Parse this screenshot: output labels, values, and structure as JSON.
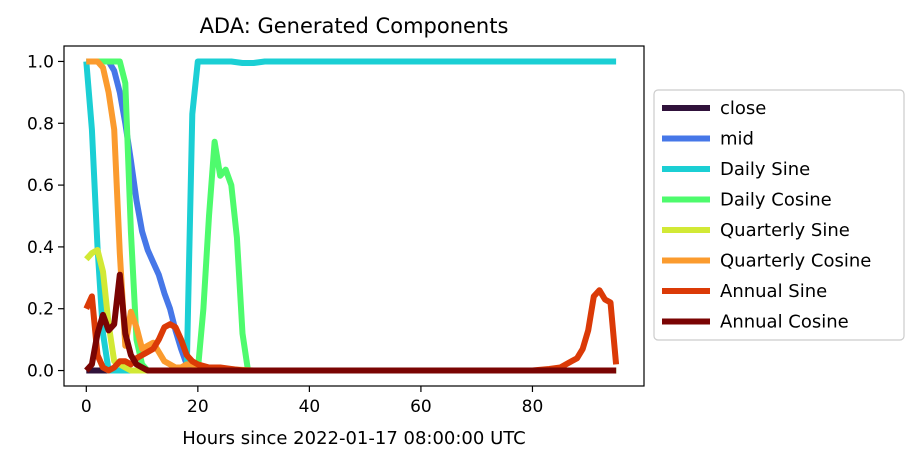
{
  "chart_data": {
    "type": "line",
    "title": "ADA: Generated Components",
    "xlabel": "Hours since 2022-01-17 08:00:00 UTC",
    "ylabel": "",
    "xlim": [
      -4,
      100
    ],
    "ylim": [
      -0.05,
      1.05
    ],
    "xticks": [
      0,
      20,
      40,
      60,
      80
    ],
    "xtick_labels": [
      "0",
      "20",
      "40",
      "60",
      "80"
    ],
    "yticks": [
      0.0,
      0.2,
      0.4,
      0.6,
      0.8,
      1.0
    ],
    "ytick_labels": [
      "0.0",
      "0.2",
      "0.4",
      "0.6",
      "0.8",
      "1.0"
    ],
    "grid": false,
    "legend_position": "outside-right",
    "series": [
      {
        "name": "close",
        "color": "#30123b",
        "x": [
          0,
          95
        ],
        "y": [
          0.0,
          0.0
        ]
      },
      {
        "name": "mid",
        "color": "#4677e8",
        "x": [
          0,
          1,
          2,
          3,
          4,
          5,
          6,
          7,
          8,
          9,
          10,
          11,
          12,
          13,
          14,
          15,
          16,
          17,
          18,
          19,
          20,
          95
        ],
        "y": [
          1.0,
          1.0,
          1.0,
          1.0,
          1.0,
          0.97,
          0.9,
          0.8,
          0.68,
          0.55,
          0.45,
          0.39,
          0.35,
          0.31,
          0.25,
          0.2,
          0.13,
          0.07,
          0.02,
          0.0,
          0.0,
          0.0
        ]
      },
      {
        "name": "Daily Sine",
        "color": "#1bcfd4",
        "x": [
          0,
          1,
          2,
          3,
          4,
          5,
          6,
          7,
          8,
          9,
          10,
          11,
          12,
          13,
          14,
          15,
          16,
          17,
          18,
          19,
          20,
          22,
          24,
          26,
          28,
          30,
          32,
          35,
          40,
          50,
          60,
          70,
          80,
          90,
          95
        ],
        "y": [
          1.0,
          0.78,
          0.4,
          0.12,
          0.0,
          0.0,
          0.0,
          0.0,
          0.0,
          0.0,
          0.0,
          0.0,
          0.0,
          0.0,
          0.0,
          0.0,
          0.0,
          0.0,
          0.0,
          0.83,
          1.0,
          1.0,
          1.0,
          1.0,
          0.995,
          0.995,
          1.0,
          1.0,
          1.0,
          1.0,
          1.0,
          1.0,
          1.0,
          1.0,
          1.0
        ]
      },
      {
        "name": "Daily Cosine",
        "color": "#4efb6d",
        "x": [
          0,
          1,
          2,
          3,
          4,
          5,
          6,
          7,
          8,
          9,
          10,
          11,
          12,
          14,
          16,
          18,
          20,
          21,
          22,
          23,
          24,
          25,
          26,
          27,
          28,
          29,
          30,
          40,
          50,
          60,
          70,
          80,
          90,
          95
        ],
        "y": [
          1.0,
          1.0,
          1.0,
          1.0,
          1.0,
          1.0,
          1.0,
          0.93,
          0.45,
          0.1,
          0.02,
          0.0,
          0.0,
          0.0,
          0.0,
          0.0,
          0.0,
          0.2,
          0.5,
          0.74,
          0.63,
          0.65,
          0.6,
          0.43,
          0.12,
          0.0,
          0.0,
          0.0,
          0.0,
          0.0,
          0.0,
          0.0,
          0.0,
          0.0
        ]
      },
      {
        "name": "Quarterly Sine",
        "color": "#d2e935",
        "x": [
          0,
          1,
          2,
          3,
          4,
          5,
          6,
          7,
          8,
          9,
          10,
          12,
          15,
          20,
          30,
          40,
          50,
          60,
          70,
          80,
          90,
          95
        ],
        "y": [
          0.36,
          0.38,
          0.39,
          0.32,
          0.15,
          0.03,
          0.02,
          0.01,
          0.0,
          0.0,
          0.0,
          0.0,
          0.0,
          0.0,
          0.0,
          0.0,
          0.0,
          0.0,
          0.0,
          0.0,
          0.0,
          0.0
        ]
      },
      {
        "name": "Quarterly Cosine",
        "color": "#fb9b2e",
        "x": [
          0,
          1,
          2,
          3,
          4,
          5,
          6,
          7,
          8,
          9,
          10,
          11,
          12,
          13,
          14,
          15,
          16,
          17,
          18,
          19,
          20,
          30,
          40,
          50,
          60,
          70,
          80,
          90,
          95
        ],
        "y": [
          1.0,
          1.0,
          1.0,
          0.98,
          0.9,
          0.78,
          0.38,
          0.08,
          0.19,
          0.14,
          0.07,
          0.08,
          0.09,
          0.06,
          0.03,
          0.02,
          0.01,
          0.01,
          0.02,
          0.02,
          0.01,
          0.0,
          0.0,
          0.0,
          0.0,
          0.0,
          0.0,
          0.0,
          0.0
        ]
      },
      {
        "name": "Annual Sine",
        "color": "#db3a07",
        "x": [
          0,
          1,
          2,
          3,
          4,
          5,
          6,
          7,
          8,
          9,
          10,
          11,
          12,
          13,
          14,
          15,
          16,
          17,
          18,
          19,
          20,
          22,
          24,
          26,
          28,
          30,
          40,
          50,
          60,
          70,
          80,
          83,
          85,
          86,
          87,
          88,
          89,
          90,
          91,
          92,
          93,
          94,
          95
        ],
        "y": [
          0.2,
          0.24,
          0.05,
          0.01,
          0.0,
          0.01,
          0.03,
          0.03,
          0.02,
          0.04,
          0.05,
          0.06,
          0.07,
          0.1,
          0.14,
          0.15,
          0.14,
          0.1,
          0.05,
          0.03,
          0.02,
          0.01,
          0.01,
          0.005,
          0.0,
          0.0,
          0.0,
          0.0,
          0.0,
          0.0,
          0.0,
          0.005,
          0.01,
          0.02,
          0.03,
          0.04,
          0.07,
          0.13,
          0.24,
          0.26,
          0.23,
          0.22,
          0.02
        ]
      },
      {
        "name": "Annual Cosine",
        "color": "#7a0403",
        "x": [
          0,
          1,
          2,
          3,
          4,
          5,
          6,
          7,
          8,
          9,
          10,
          11,
          12,
          15,
          20,
          30,
          40,
          50,
          60,
          70,
          80,
          90,
          95
        ],
        "y": [
          0.0,
          0.02,
          0.12,
          0.18,
          0.13,
          0.15,
          0.31,
          0.12,
          0.05,
          0.02,
          0.01,
          0.0,
          0.0,
          0.0,
          0.0,
          0.0,
          0.0,
          0.0,
          0.0,
          0.0,
          0.0,
          0.0,
          0.0
        ]
      }
    ]
  }
}
